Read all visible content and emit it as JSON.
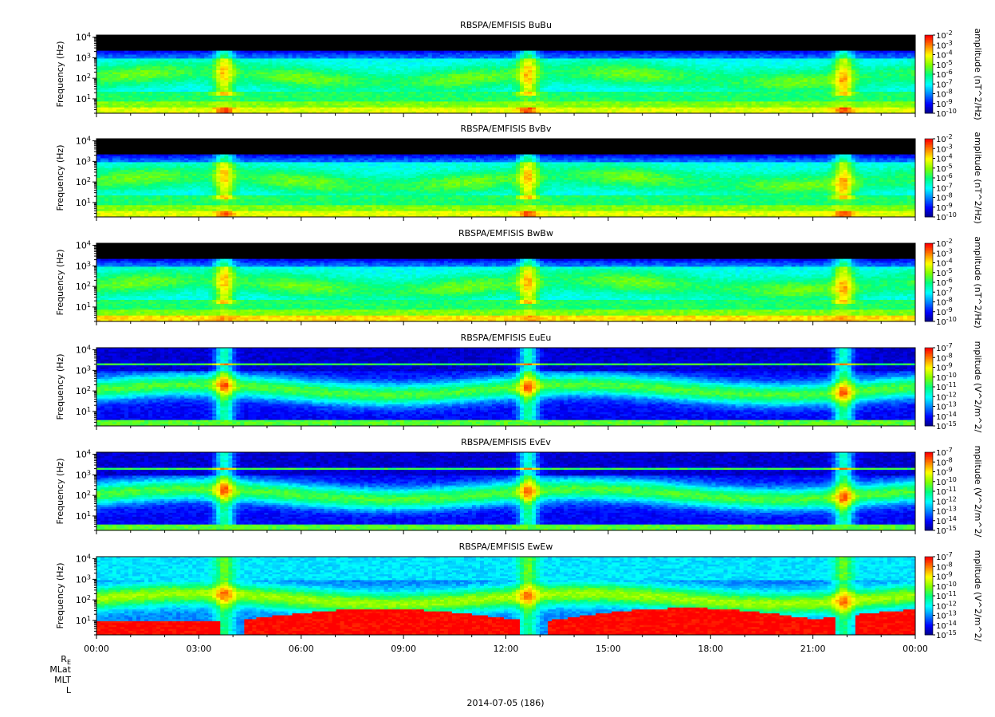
{
  "chart_data": [
    {
      "type": "heatmap",
      "title": "RBSPA/EMFISIS  BuBu",
      "ylabel": "Frequency (Hz)",
      "yscale": "log",
      "yticks": [
        "10",
        "10",
        "10",
        "10"
      ],
      "ytick_exps": [
        "1",
        "2",
        "3",
        "4"
      ],
      "colorbar_label": "amplitude (nT^2/Hz)",
      "colorbar_ticks": [
        "10",
        "10",
        "10",
        "10",
        "10",
        "10",
        "10",
        "10",
        "10"
      ],
      "colorbar_exps": [
        "-2",
        "-3",
        "-4",
        "-5",
        "-6",
        "-7",
        "-8",
        "-9",
        "-10"
      ],
      "colorbar_range": [
        -10,
        -2
      ],
      "profile": "b",
      "trough": 0
    },
    {
      "type": "heatmap",
      "title": "RBSPA/EMFISIS  BvBv",
      "ylabel": "Frequency (Hz)",
      "yscale": "log",
      "yticks": [
        "10",
        "10",
        "10",
        "10"
      ],
      "ytick_exps": [
        "1",
        "2",
        "3",
        "4"
      ],
      "colorbar_label": "amplitude (nT^2/Hz)",
      "colorbar_ticks": [
        "10",
        "10",
        "10",
        "10",
        "10",
        "10",
        "10",
        "10",
        "10"
      ],
      "colorbar_exps": [
        "-2",
        "-3",
        "-4",
        "-5",
        "-6",
        "-7",
        "-8",
        "-9",
        "-10"
      ],
      "colorbar_range": [
        -10,
        -2
      ],
      "profile": "b",
      "trough": 0
    },
    {
      "type": "heatmap",
      "title": "RBSPA/EMFISIS  BwBw",
      "ylabel": "Frequency (Hz)",
      "yscale": "log",
      "yticks": [
        "10",
        "10",
        "10",
        "10"
      ],
      "ytick_exps": [
        "1",
        "2",
        "3",
        "4"
      ],
      "colorbar_label": "amplitude (nT^2/Hz)",
      "colorbar_ticks": [
        "10",
        "10",
        "10",
        "10",
        "10",
        "10",
        "10",
        "10",
        "10"
      ],
      "colorbar_exps": [
        "-2",
        "-3",
        "-4",
        "-5",
        "-6",
        "-7",
        "-8",
        "-9",
        "-10"
      ],
      "colorbar_range": [
        -10,
        -2
      ],
      "profile": "bw",
      "trough": 0
    },
    {
      "type": "heatmap",
      "title": "RBSPA/EMFISIS  EuEu",
      "ylabel": "Frequency (Hz)",
      "yscale": "log",
      "yticks": [
        "10",
        "10",
        "10",
        "10"
      ],
      "ytick_exps": [
        "1",
        "2",
        "3",
        "4"
      ],
      "colorbar_label": "mplitude (V^2/m^2/",
      "colorbar_ticks": [
        "10",
        "10",
        "10",
        "10",
        "10",
        "10",
        "10",
        "10",
        "10"
      ],
      "colorbar_exps": [
        "-7",
        "-8",
        "-9",
        "-10",
        "-11",
        "-12",
        "-13",
        "-14",
        "-15"
      ],
      "colorbar_range": [
        -15,
        -7
      ],
      "profile": "e",
      "trough": 1
    },
    {
      "type": "heatmap",
      "title": "RBSPA/EMFISIS  EvEv",
      "ylabel": "Frequency (Hz)",
      "yscale": "log",
      "yticks": [
        "10",
        "10",
        "10",
        "10"
      ],
      "ytick_exps": [
        "1",
        "2",
        "3",
        "4"
      ],
      "colorbar_label": "mplitude (V^2/m^2/",
      "colorbar_ticks": [
        "10",
        "10",
        "10",
        "10",
        "10",
        "10",
        "10",
        "10",
        "10"
      ],
      "colorbar_exps": [
        "-7",
        "-8",
        "-9",
        "-10",
        "-11",
        "-12",
        "-13",
        "-14",
        "-15"
      ],
      "colorbar_range": [
        -15,
        -7
      ],
      "profile": "e",
      "trough": 1
    },
    {
      "type": "heatmap",
      "title": "RBSPA/EMFISIS  EwEw",
      "ylabel": "Frequency (Hz)",
      "yscale": "log",
      "yticks": [
        "10",
        "10",
        "10",
        "10"
      ],
      "ytick_exps": [
        "1",
        "2",
        "3",
        "4"
      ],
      "colorbar_label": "mplitude (V^2/m^2/",
      "colorbar_ticks": [
        "10",
        "10",
        "10",
        "10",
        "10",
        "10",
        "10",
        "10",
        "10"
      ],
      "colorbar_exps": [
        "-7",
        "-8",
        "-9",
        "-10",
        "-11",
        "-12",
        "-13",
        "-14",
        "-15"
      ],
      "colorbar_range": [
        -15,
        -7
      ],
      "profile": "ew",
      "trough": 1
    }
  ],
  "x_axis": {
    "ticks": [
      "00:00",
      "03:00",
      "06:00",
      "09:00",
      "12:00",
      "15:00",
      "18:00",
      "21:00",
      "00:00"
    ],
    "range_hours": [
      0,
      24
    ],
    "row_labels": [
      {
        "base": "R",
        "sub": "E"
      },
      {
        "base": "MLat",
        "sub": ""
      },
      {
        "base": "MLT",
        "sub": ""
      },
      {
        "base": "L",
        "sub": ""
      }
    ],
    "date_label": "2014-07-05 (186)"
  },
  "colormap": [
    "#000080",
    "#0000ff",
    "#0080ff",
    "#00ffff",
    "#00ff80",
    "#80ff00",
    "#ffff00",
    "#ff8000",
    "#ff0000"
  ]
}
